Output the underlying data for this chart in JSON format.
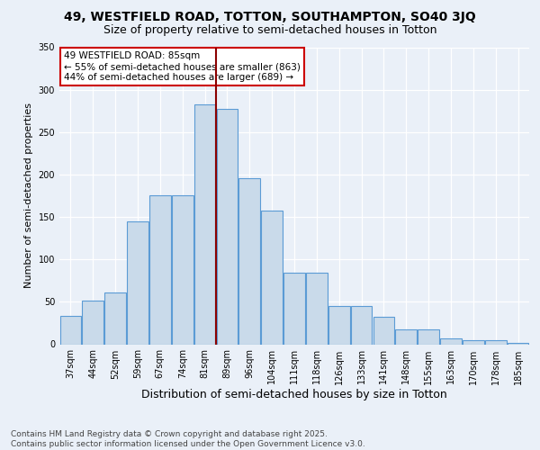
{
  "title1": "49, WESTFIELD ROAD, TOTTON, SOUTHAMPTON, SO40 3JQ",
  "title2": "Size of property relative to semi-detached houses in Totton",
  "xlabel": "Distribution of semi-detached houses by size in Totton",
  "ylabel": "Number of semi-detached properties",
  "categories": [
    "37sqm",
    "44sqm",
    "52sqm",
    "59sqm",
    "67sqm",
    "74sqm",
    "81sqm",
    "89sqm",
    "96sqm",
    "104sqm",
    "111sqm",
    "118sqm",
    "126sqm",
    "133sqm",
    "141sqm",
    "148sqm",
    "155sqm",
    "163sqm",
    "170sqm",
    "178sqm",
    "185sqm"
  ],
  "values": [
    33,
    51,
    61,
    145,
    176,
    176,
    283,
    277,
    196,
    157,
    84,
    84,
    45,
    45,
    32,
    18,
    18,
    7,
    5,
    5,
    2
  ],
  "bar_color": "#c9daea",
  "bar_edge_color": "#5b9bd5",
  "vline_color": "#8b0000",
  "annotation_title": "49 WESTFIELD ROAD: 85sqm",
  "annotation_line1": "← 55% of semi-detached houses are smaller (863)",
  "annotation_line2": "44% of semi-detached houses are larger (689) →",
  "annotation_box_color": "#ffffff",
  "annotation_box_edge": "#cc0000",
  "footer": "Contains HM Land Registry data © Crown copyright and database right 2025.\nContains public sector information licensed under the Open Government Licence v3.0.",
  "ylim": [
    0,
    350
  ],
  "yticks": [
    0,
    50,
    100,
    150,
    200,
    250,
    300,
    350
  ],
  "bg_color": "#eaf0f8",
  "plot_bg_color": "#eaf0f8",
  "title1_fontsize": 10,
  "title2_fontsize": 9,
  "xlabel_fontsize": 9,
  "ylabel_fontsize": 8,
  "footer_fontsize": 6.5,
  "tick_fontsize": 7,
  "ann_fontsize": 7.5
}
